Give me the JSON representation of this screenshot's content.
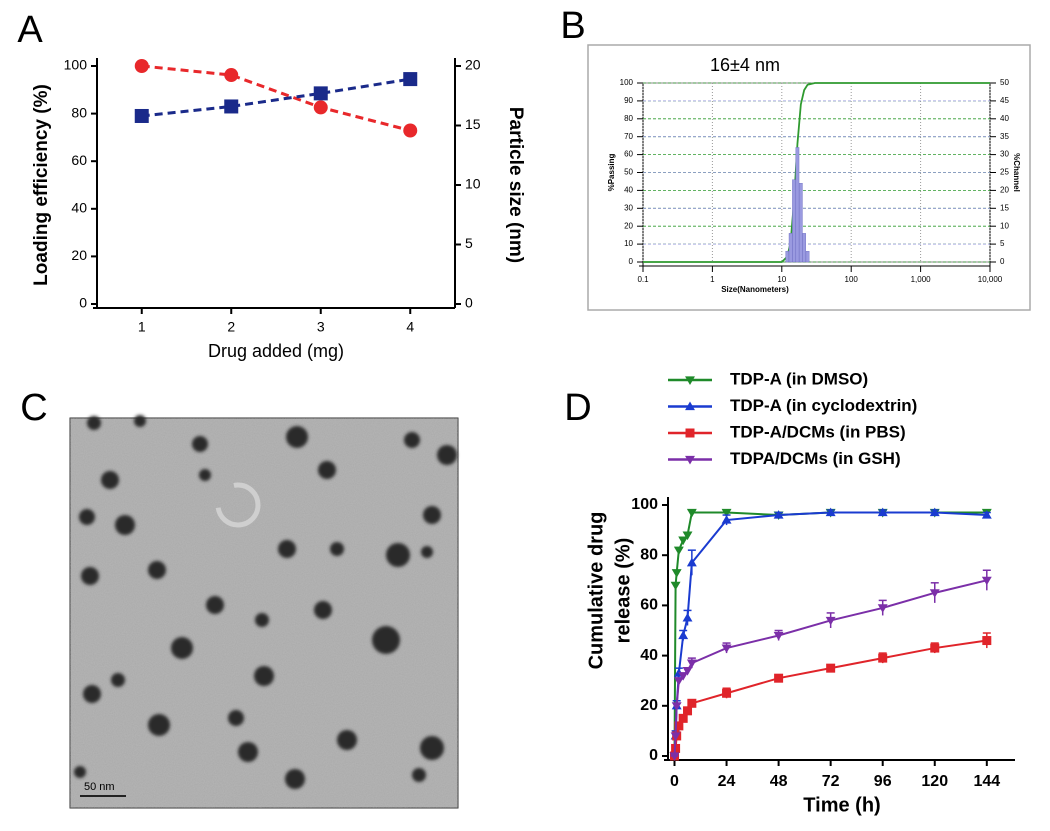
{
  "chart_data": [
    {
      "type": "line",
      "label": "A",
      "x": [
        1,
        2,
        3,
        4
      ],
      "xlim": [
        0.5,
        4.5
      ],
      "xticks": [
        1,
        2,
        3,
        4
      ],
      "xlabel": "Drug added (mg)",
      "ylabel": "Loading efficiency (%)",
      "y2label": "Particle size (nm)",
      "ylim": [
        0,
        100
      ],
      "yticks": [
        0,
        20,
        40,
        60,
        80,
        100
      ],
      "y2lim": [
        0,
        20
      ],
      "y2ticks": [
        0,
        5,
        10,
        15,
        20
      ],
      "line_style": "dashed",
      "series": [
        {
          "color": "#e8282b",
          "marker": "circle",
          "values": [
            100,
            96.2,
            82.6,
            72.9
          ]
        },
        {
          "color": "#1a2a8a",
          "marker": "square",
          "axis": "y2",
          "values": [
            15.8,
            16.6,
            17.7,
            18.9
          ]
        }
      ]
    },
    {
      "type": "distribution",
      "label": "B",
      "title": "16±4 nm",
      "xlabel": "Size(Nanometers)",
      "ylabel": "%Passing",
      "y2label": "%Channel",
      "xlog": true,
      "xlim": [
        0.1,
        10000
      ],
      "xticks": [
        0.1,
        1,
        10,
        100,
        {
          "value": 1000,
          "label": "1,000"
        },
        {
          "value": 10000,
          "label": "10,000"
        }
      ],
      "ylim": [
        0,
        100
      ],
      "yticks": [
        0,
        10,
        20,
        30,
        40,
        50,
        60,
        70,
        80,
        90,
        100
      ],
      "y2lim": [
        0,
        50
      ],
      "y2ticks": [
        0,
        5,
        10,
        15,
        20,
        25,
        30,
        35,
        40,
        45,
        50
      ],
      "grid": true,
      "series": [
        {
          "color": "#2f9a2f",
          "x": [
            0.1,
            10,
            12,
            13.4,
            15,
            16.8,
            18.8,
            21,
            23.5,
            30,
            10000
          ],
          "values": [
            0,
            0,
            3,
            11,
            34,
            66,
            88,
            96,
            99,
            100,
            100
          ]
        },
        {
          "color": "#9a9ae0",
          "axis": "y2",
          "bars": true,
          "x": [
            12,
            13.4,
            15,
            16.8,
            18.8,
            21,
            23.5
          ],
          "values": [
            3,
            8,
            23,
            32,
            22,
            8,
            3
          ]
        }
      ]
    },
    {
      "type": "line",
      "label": "D",
      "xlabel": "Time (h)",
      "ylabel": [
        "Cumulative drug",
        "release (%)"
      ],
      "legend": "top",
      "x": [
        0,
        0.5,
        1,
        2,
        4,
        6,
        8,
        24,
        48,
        72,
        96,
        120,
        144
      ],
      "xlim": [
        -3,
        157
      ],
      "xticks": [
        0,
        24,
        48,
        72,
        96,
        120,
        144
      ],
      "ylim": [
        0,
        100
      ],
      "yticks": [
        0,
        20,
        40,
        60,
        80,
        100
      ],
      "series": [
        {
          "name": "TDP-A (in DMSO)",
          "color": "#1f8a2a",
          "marker": "triangle-down",
          "values": [
            0,
            68,
            73,
            82,
            86,
            88,
            97,
            97,
            96,
            97,
            97,
            97,
            97
          ],
          "errors": [
            0,
            1,
            1,
            1,
            1,
            1,
            1,
            1,
            1,
            1,
            1,
            1,
            1
          ]
        },
        {
          "name": "TDP-A (in cyclodextrin)",
          "color": "#1a3bd0",
          "marker": "triangle-up",
          "values": [
            0,
            8,
            20,
            33,
            48,
            55,
            77,
            94,
            96,
            97,
            97,
            97,
            96
          ],
          "errors": [
            0,
            2,
            2,
            2,
            2,
            3,
            5,
            2,
            1,
            1,
            1,
            1,
            1
          ]
        },
        {
          "name": "TDP-A/DCMs (in PBS)",
          "color": "#e0242a",
          "marker": "square",
          "values": [
            0,
            3,
            8,
            12,
            15,
            18,
            21,
            25,
            31,
            35,
            39,
            43,
            46
          ],
          "errors": [
            0,
            1,
            1,
            1,
            1,
            1,
            1,
            2,
            1,
            1,
            2,
            2,
            3
          ]
        },
        {
          "name": "TDPA/DCMs (in GSH)",
          "color": "#7b2fa8",
          "marker": "triangle-down",
          "values": [
            0,
            8,
            20,
            30,
            32,
            34,
            37,
            43,
            48,
            54,
            59,
            65,
            70
          ],
          "errors": [
            0,
            1,
            1,
            1,
            1,
            1,
            2,
            2,
            2,
            3,
            3,
            4,
            4
          ]
        }
      ]
    }
  ],
  "micrograph": {
    "label": "C",
    "scale_bar": "50 nm"
  }
}
